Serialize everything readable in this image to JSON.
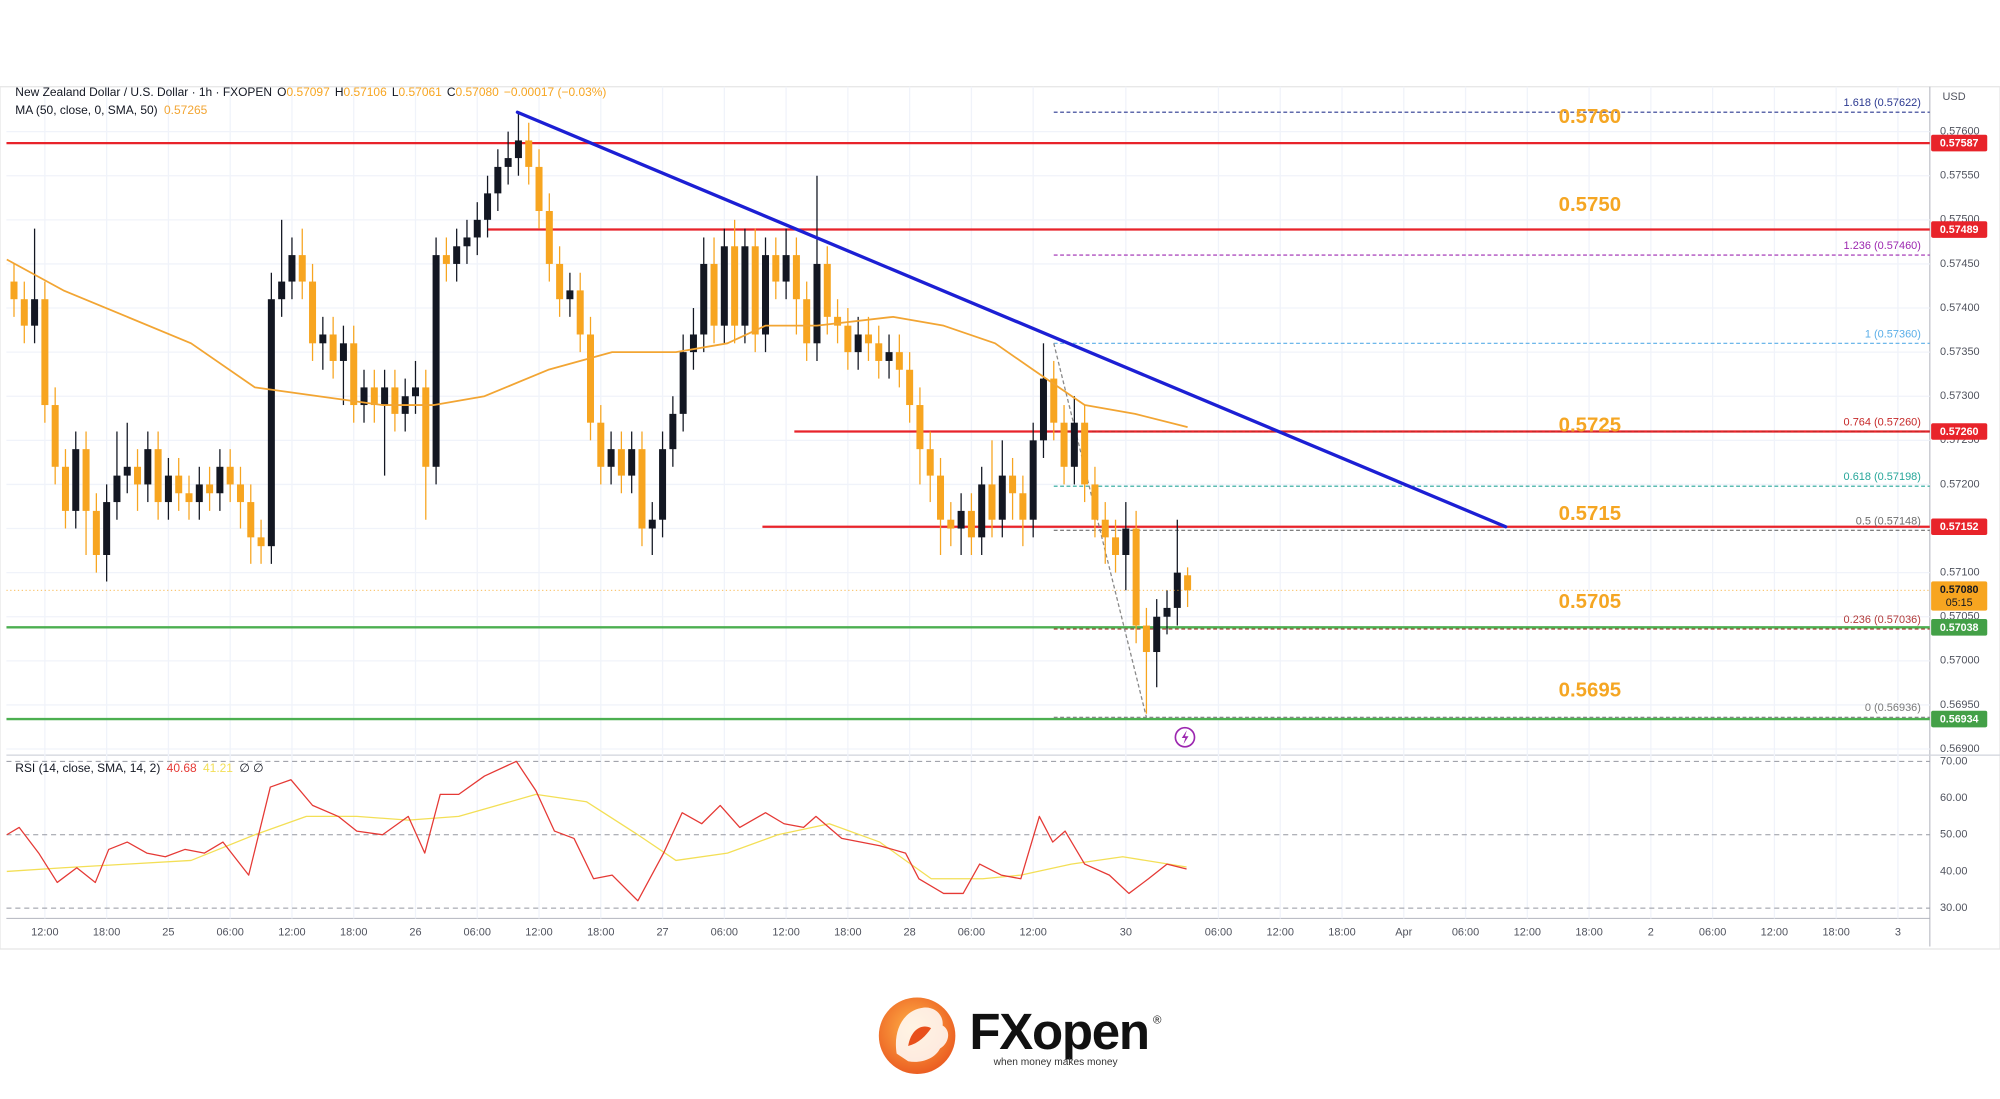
{
  "chart_data": {
    "type": "candlestick",
    "symbol": "New Zealand Dollar / U.S. Dollar · 1h · FXOPEN",
    "ohlc": [
      {
        "label": "O",
        "value": "0.57097"
      },
      {
        "label": "H",
        "value": "0.57106"
      },
      {
        "label": "L",
        "value": "0.57061"
      },
      {
        "label": "C",
        "value": "0.57080"
      }
    ],
    "change": "−0.00017 (−0.03%)",
    "currency": "USD",
    "up_color": "#131722",
    "down_color": "#f7a520",
    "candles": {
      "open": [
        0.5743,
        0.5741,
        0.5738,
        0.5741,
        0.5729,
        0.5722,
        0.5717,
        0.5724,
        0.5717,
        0.5712,
        0.5718,
        0.5721,
        0.5722,
        0.572,
        0.5724,
        0.5718,
        0.5721,
        0.5719,
        0.5718,
        0.572,
        0.5719,
        0.5722,
        0.572,
        0.5718,
        0.5714,
        0.5713,
        0.5741,
        0.5743,
        0.5746,
        0.5743,
        0.5736,
        0.5737,
        0.5734,
        0.5736,
        0.5729,
        0.5731,
        0.5729,
        0.5731,
        0.5728,
        0.573,
        0.5731,
        0.5722,
        0.5746,
        0.5745,
        0.5747,
        0.5748,
        0.575,
        0.5753,
        0.5756,
        0.5757,
        0.5759,
        0.5756,
        0.5751,
        0.5745,
        0.5741,
        0.5742,
        0.5737,
        0.5727,
        0.5722,
        0.5724,
        0.5721,
        0.5724,
        0.5715,
        0.5716,
        0.5724,
        0.5728,
        0.5735,
        0.5737,
        0.5745,
        0.5738,
        0.5747,
        0.5738,
        0.5747,
        0.5737,
        0.5746,
        0.5743,
        0.5746,
        0.5741,
        0.5736,
        0.5745,
        0.5739,
        0.5738,
        0.5735,
        0.5737,
        0.5736,
        0.5734,
        0.5735,
        0.5733,
        0.5729,
        0.5724,
        0.5721,
        0.5716,
        0.5715,
        0.5717,
        0.5714,
        0.572,
        0.5716,
        0.5721,
        0.5719,
        0.5716,
        0.5725,
        0.5732,
        0.5727,
        0.5722,
        0.5727,
        0.572,
        0.5716,
        0.5714,
        0.5712,
        0.5715,
        0.5704,
        0.5701,
        0.5705,
        0.5706,
        0.57097
      ],
      "high": [
        0.5745,
        0.5743,
        0.5749,
        0.5743,
        0.5731,
        0.5724,
        0.5726,
        0.5726,
        0.5719,
        0.572,
        0.5726,
        0.5727,
        0.5724,
        0.5726,
        0.5726,
        0.5723,
        0.5723,
        0.5721,
        0.5722,
        0.5722,
        0.5724,
        0.5724,
        0.5722,
        0.572,
        0.5716,
        0.5744,
        0.575,
        0.5748,
        0.5749,
        0.5745,
        0.5739,
        0.5739,
        0.5738,
        0.5738,
        0.5733,
        0.5733,
        0.5733,
        0.5733,
        0.5732,
        0.5734,
        0.5733,
        0.5748,
        0.5748,
        0.5749,
        0.575,
        0.5752,
        0.5755,
        0.5758,
        0.576,
        0.5762,
        0.5761,
        0.5758,
        0.5753,
        0.5747,
        0.5744,
        0.5744,
        0.5739,
        0.5729,
        0.5726,
        0.5726,
        0.5726,
        0.5726,
        0.5718,
        0.5726,
        0.573,
        0.5737,
        0.574,
        0.5748,
        0.5748,
        0.5749,
        0.575,
        0.5749,
        0.5749,
        0.5748,
        0.5748,
        0.5749,
        0.5748,
        0.5743,
        0.5755,
        0.5747,
        0.5741,
        0.574,
        0.5739,
        0.5739,
        0.5738,
        0.5737,
        0.5737,
        0.5735,
        0.5731,
        0.5726,
        0.5723,
        0.5718,
        0.5719,
        0.5719,
        0.5722,
        0.5725,
        0.5725,
        0.5723,
        0.5721,
        0.5727,
        0.5736,
        0.5734,
        0.5729,
        0.573,
        0.5729,
        0.5722,
        0.5718,
        0.5716,
        0.5718,
        0.5717,
        0.5706,
        0.5707,
        0.5708,
        0.5716,
        0.57106
      ],
      "low": [
        0.5739,
        0.5736,
        0.5736,
        0.5727,
        0.572,
        0.5715,
        0.5715,
        0.5712,
        0.571,
        0.5709,
        0.5716,
        0.5719,
        0.5717,
        0.5718,
        0.5716,
        0.5716,
        0.5717,
        0.5716,
        0.5716,
        0.5717,
        0.5717,
        0.5718,
        0.5715,
        0.5711,
        0.5711,
        0.5711,
        0.5739,
        0.5741,
        0.5741,
        0.5734,
        0.5733,
        0.5732,
        0.5729,
        0.5727,
        0.5727,
        0.5727,
        0.5721,
        0.5726,
        0.5726,
        0.5728,
        0.5716,
        0.572,
        0.5743,
        0.5743,
        0.5745,
        0.5746,
        0.5748,
        0.5751,
        0.5754,
        0.5755,
        0.5754,
        0.5749,
        0.5743,
        0.5739,
        0.5739,
        0.5735,
        0.5725,
        0.572,
        0.572,
        0.5719,
        0.5719,
        0.5713,
        0.5712,
        0.5714,
        0.5722,
        0.5726,
        0.5733,
        0.5735,
        0.5736,
        0.5736,
        0.5736,
        0.5736,
        0.5735,
        0.5735,
        0.5741,
        0.5741,
        0.5737,
        0.5734,
        0.5734,
        0.5737,
        0.5736,
        0.5733,
        0.5733,
        0.5734,
        0.5732,
        0.5732,
        0.5731,
        0.5727,
        0.572,
        0.5718,
        0.5712,
        0.5713,
        0.5712,
        0.5712,
        0.5712,
        0.5714,
        0.5714,
        0.5716,
        0.5713,
        0.5714,
        0.5723,
        0.5725,
        0.572,
        0.572,
        0.5718,
        0.5714,
        0.5711,
        0.571,
        0.5708,
        0.5702,
        0.5694,
        0.5697,
        0.5703,
        0.5704,
        0.57061
      ],
      "close": [
        0.5741,
        0.5738,
        0.5741,
        0.5729,
        0.5722,
        0.5717,
        0.5724,
        0.5717,
        0.5712,
        0.5718,
        0.5721,
        0.5722,
        0.572,
        0.5724,
        0.5718,
        0.5721,
        0.5719,
        0.5718,
        0.572,
        0.5719,
        0.5722,
        0.572,
        0.5718,
        0.5714,
        0.5713,
        0.5741,
        0.5743,
        0.5746,
        0.5743,
        0.5736,
        0.5737,
        0.5734,
        0.5736,
        0.5729,
        0.5731,
        0.5729,
        0.5731,
        0.5728,
        0.573,
        0.5731,
        0.5722,
        0.5746,
        0.5745,
        0.5747,
        0.5748,
        0.575,
        0.5753,
        0.5756,
        0.5757,
        0.5759,
        0.5756,
        0.5751,
        0.5745,
        0.5741,
        0.5742,
        0.5737,
        0.5727,
        0.5722,
        0.5724,
        0.5721,
        0.5724,
        0.5715,
        0.5716,
        0.5724,
        0.5728,
        0.5735,
        0.5737,
        0.5745,
        0.5738,
        0.5747,
        0.5738,
        0.5747,
        0.5737,
        0.5746,
        0.5743,
        0.5746,
        0.5741,
        0.5736,
        0.5745,
        0.5739,
        0.5738,
        0.5735,
        0.5737,
        0.5736,
        0.5734,
        0.5735,
        0.5733,
        0.5729,
        0.5724,
        0.5721,
        0.5716,
        0.5715,
        0.5717,
        0.5714,
        0.572,
        0.5716,
        0.5721,
        0.5719,
        0.5716,
        0.5725,
        0.5732,
        0.5727,
        0.5722,
        0.5727,
        0.572,
        0.5716,
        0.5714,
        0.5712,
        0.5715,
        0.5704,
        0.5701,
        0.5705,
        0.5706,
        0.571,
        0.5708
      ]
    },
    "xlim": [
      -0.74,
      186.1
    ],
    "xticks": [
      {
        "value": 3,
        "label": "12:00"
      },
      {
        "value": 9,
        "label": "18:00"
      },
      {
        "value": 15,
        "label": "25"
      },
      {
        "value": 21,
        "label": "06:00"
      },
      {
        "value": 27,
        "label": "12:00"
      },
      {
        "value": 33,
        "label": "18:00"
      },
      {
        "value": 39,
        "label": "26"
      },
      {
        "value": 45,
        "label": "06:00"
      },
      {
        "value": 51,
        "label": "12:00"
      },
      {
        "value": 57,
        "label": "18:00"
      },
      {
        "value": 63,
        "label": "27"
      },
      {
        "value": 69,
        "label": "06:00"
      },
      {
        "value": 75,
        "label": "12:00"
      },
      {
        "value": 81,
        "label": "18:00"
      },
      {
        "value": 87,
        "label": "28"
      },
      {
        "value": 93,
        "label": "06:00"
      },
      {
        "value": 99,
        "label": "12:00"
      },
      {
        "value": 108,
        "label": "30"
      },
      {
        "value": 117,
        "label": "06:00"
      },
      {
        "value": 123,
        "label": "12:00"
      },
      {
        "value": 129,
        "label": "18:00"
      },
      {
        "value": 135,
        "label": "Apr"
      },
      {
        "value": 141,
        "label": "06:00"
      },
      {
        "value": 147,
        "label": "12:00"
      },
      {
        "value": 153,
        "label": "18:00"
      },
      {
        "value": 159,
        "label": "2"
      },
      {
        "value": 165,
        "label": "06:00"
      },
      {
        "value": 171,
        "label": "12:00"
      },
      {
        "value": 177,
        "label": "18:00"
      },
      {
        "value": 183,
        "label": "3"
      }
    ],
    "ylim": [
      0.56896,
      0.57648
    ],
    "yticks": [
      {
        "value": 0.569,
        "label": "0.56900"
      },
      {
        "value": 0.5695,
        "label": "0.56950"
      },
      {
        "value": 0.57,
        "label": "0.57000"
      },
      {
        "value": 0.5705,
        "label": "0.57050"
      },
      {
        "value": 0.571,
        "label": "0.57100"
      },
      {
        "value": 0.5715,
        "label": "0.57150"
      },
      {
        "value": 0.572,
        "label": "0.57200"
      },
      {
        "value": 0.5725,
        "label": "0.57250"
      },
      {
        "value": 0.573,
        "label": "0.57300"
      },
      {
        "value": 0.5735,
        "label": "0.57350"
      },
      {
        "value": 0.574,
        "label": "0.57400"
      },
      {
        "value": 0.5745,
        "label": "0.57450"
      },
      {
        "value": 0.575,
        "label": "0.57500"
      },
      {
        "value": 0.5755,
        "label": "0.57550"
      },
      {
        "value": 0.576,
        "label": "0.57600"
      }
    ],
    "grid": true,
    "ma": {
      "name": "MA (50, close, 0, SMA, 50)",
      "last": 0.57265,
      "color": "#f2a533",
      "x": [
        -0.7,
        4.8,
        11,
        17.2,
        23.4,
        29.6,
        35.8,
        40.8,
        45.7,
        51.9,
        58.1,
        64.3,
        69.3,
        73,
        78,
        85.4,
        90.3,
        95.3,
        99,
        104,
        108.9,
        114
      ],
      "values": [
        0.57455,
        0.5742,
        0.5739,
        0.5736,
        0.5731,
        0.573,
        0.5729,
        0.5729,
        0.573,
        0.5733,
        0.5735,
        0.5735,
        0.5736,
        0.5738,
        0.5738,
        0.5739,
        0.5738,
        0.5736,
        0.5733,
        0.5729,
        0.5728,
        0.57265
      ]
    },
    "trendline": {
      "color": "#1c1fd4",
      "x": [
        48.9,
        144.9
      ],
      "y": [
        0.57622,
        0.57152
      ]
    },
    "lines": [
      {
        "value": 0.57587,
        "color": "#e8232a"
      },
      {
        "value": 0.57489,
        "color": "#e8232a",
        "from": 46
      },
      {
        "value": 0.5726,
        "color": "#e8232a",
        "from": 75.8
      },
      {
        "value": 0.57152,
        "color": "#e8232a",
        "from": 72.7
      },
      {
        "value": 0.57038,
        "color": "#4caf50"
      },
      {
        "value": 0.56934,
        "color": "#4caf50"
      }
    ],
    "level_labels": [
      {
        "value": 0.576,
        "label": "0.5760"
      },
      {
        "value": 0.575,
        "label": "0.5750"
      },
      {
        "value": 0.5725,
        "label": "0.5725"
      },
      {
        "value": 0.5715,
        "label": "0.5715"
      },
      {
        "value": 0.5705,
        "label": "0.5705"
      },
      {
        "value": 0.5695,
        "label": "0.5695"
      }
    ],
    "level_color": "#f5a623",
    "fib": {
      "x": [
        101,
        110
      ],
      "levels": [
        {
          "value": 0.57622,
          "label": "1.618 (0.57622)",
          "color": "#2b3990"
        },
        {
          "value": 0.5746,
          "label": "1.236 (0.57460)",
          "color": "#9c27b0"
        },
        {
          "value": 0.5736,
          "label": "1 (0.57360)",
          "color": "#5aaee8"
        },
        {
          "value": 0.5726,
          "label": "0.764 (0.57260)",
          "color": "#c62828"
        },
        {
          "value": 0.57198,
          "label": "0.618 (0.57198)",
          "color": "#26a69a"
        },
        {
          "value": 0.57148,
          "label": "0.5 (0.57148)",
          "color": "#6d6d6d"
        },
        {
          "value": 0.57036,
          "label": "0.236 (0.57036)",
          "color": "#b23b3b"
        },
        {
          "value": 0.56936,
          "label": "0 (0.56936)",
          "color": "#7a7a7a"
        }
      ]
    },
    "price_labels": [
      {
        "value": 0.57587,
        "color": "#e8232a"
      },
      {
        "value": 0.57489,
        "color": "#e8232a"
      },
      {
        "value": 0.5726,
        "label": "0.57260",
        "color": "#e8232a"
      },
      {
        "value": 0.57152,
        "color": "#e8232a"
      },
      {
        "value": 0.57038,
        "color": "#43a047"
      },
      {
        "value": 0.56934,
        "color": "#43a047"
      }
    ],
    "current": {
      "value": 0.5708,
      "label": "0.57080",
      "countdown": "05:15",
      "color": "#f7a520"
    },
    "rsi": {
      "name": "RSI (14, close, SMA, 14, 2)",
      "last": 40.68,
      "ma_last": 41.21,
      "extra": "∅ ∅",
      "color": "#e53935",
      "ma_color": "#f3df56",
      "ylim": [
        27.9,
        72.4
      ],
      "yticks": [
        {
          "value": 30,
          "label": "30.00"
        },
        {
          "value": 40,
          "label": "40.00"
        },
        {
          "value": 50,
          "label": "50.00"
        },
        {
          "value": 60,
          "label": "60.00"
        },
        {
          "value": 70,
          "label": "70.00"
        }
      ],
      "x": [
        -0.7,
        0.5,
        2.4,
        4.2,
        6.1,
        7.9,
        9.2,
        11,
        12.9,
        14.7,
        16.6,
        18.5,
        20.3,
        22.8,
        24.9,
        26.9,
        29,
        31.5,
        33.3,
        35.8,
        38.3,
        39.9,
        41.4,
        43.2,
        45.7,
        48.8,
        50.7,
        52.5,
        54.4,
        56.3,
        58.1,
        60.6,
        63.1,
        64.9,
        66.8,
        68.6,
        70.5,
        73,
        74.8,
        76.7,
        77.9,
        80.4,
        84.1,
        86.6,
        87.9,
        90.3,
        92.2,
        93.8,
        95.9,
        97.8,
        99.6,
        100.9,
        102.1,
        104,
        106.4,
        108.3,
        110.2,
        112,
        113.9
      ],
      "values": [
        50,
        52,
        45,
        37,
        41,
        37,
        46,
        48,
        45,
        44,
        46,
        45,
        48,
        39,
        63,
        65,
        58,
        55,
        51,
        50,
        55,
        45,
        61,
        61,
        66,
        70,
        62,
        51,
        49,
        38,
        39,
        32,
        45,
        56,
        53,
        58,
        52,
        56,
        53,
        52,
        55,
        49,
        47,
        45,
        38,
        34,
        34,
        42,
        39,
        38,
        55,
        48,
        51,
        42,
        39,
        34,
        38,
        42,
        40.68
      ],
      "ma_x": [
        -0.7,
        4.8,
        11,
        17.2,
        23.4,
        28.4,
        33.3,
        38.3,
        43.2,
        50.7,
        55.6,
        60.6,
        64.3,
        69.3,
        74.2,
        79.2,
        84.1,
        89.1,
        94.1,
        97.8,
        102.7,
        107.7,
        113.9
      ],
      "ma_values": [
        40,
        41,
        42,
        43,
        50,
        55,
        55,
        54,
        55,
        61,
        59,
        50,
        43,
        45,
        50,
        53,
        48,
        38,
        38,
        39,
        42,
        44,
        41.21
      ]
    }
  },
  "footer": {
    "brand": "FXopen",
    "registered": "®",
    "tagline": "when money makes money"
  }
}
